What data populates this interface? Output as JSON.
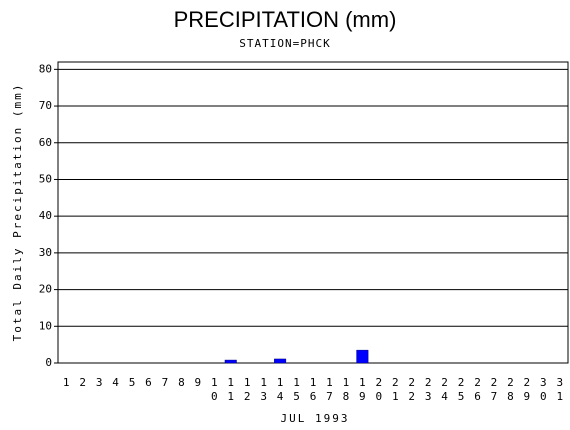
{
  "chart_data": {
    "type": "bar",
    "title": "PRECIPITATION (mm)",
    "subtitle": "STATION=PHCK",
    "x_label": "JUL 1993",
    "y_label": "Total Daily Precipitation (mm)",
    "categories": [
      "1",
      "2",
      "3",
      "4",
      "5",
      "6",
      "7",
      "8",
      "9",
      "10",
      "11",
      "12",
      "13",
      "14",
      "15",
      "16",
      "17",
      "18",
      "19",
      "20",
      "21",
      "22",
      "23",
      "24",
      "25",
      "26",
      "27",
      "28",
      "29",
      "30",
      "31"
    ],
    "values": [
      0,
      0,
      0,
      0,
      0,
      0,
      0,
      0,
      0,
      0,
      0.8,
      0,
      0,
      1.1,
      0,
      0,
      0,
      0,
      3.5,
      0,
      0,
      0,
      0,
      0,
      0,
      0,
      0,
      0,
      0,
      0,
      0
    ],
    "color": "#0000ff",
    "ylim": [
      0,
      82
    ],
    "yticks": [
      0,
      10,
      20,
      30,
      40,
      50,
      60,
      70,
      80
    ],
    "grid": true
  }
}
